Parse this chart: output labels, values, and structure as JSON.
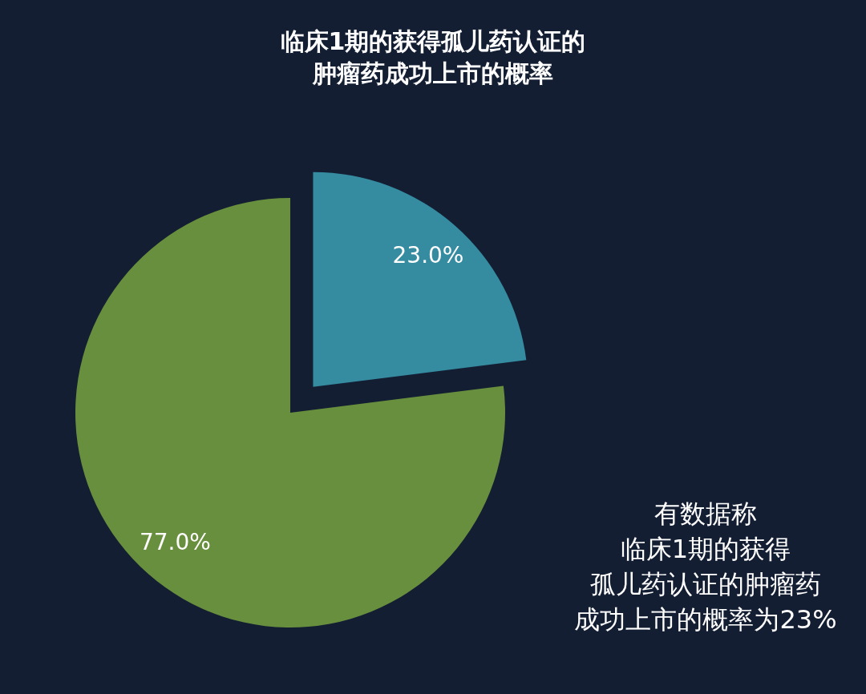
{
  "chart_data": {
    "type": "pie",
    "title": "临床1期的获得孤儿药认证的肿瘤药成功上市的概率",
    "categories": [
      null,
      null
    ],
    "values": [
      23,
      77
    ],
    "colors": [
      "#358ca0",
      "#688f3d"
    ],
    "value_labels": [
      "23.0%",
      "77.0%"
    ],
    "annotations": [
      "有数据称临床1期的获得孤儿药认证的肿瘤药成功上市的概率为23%"
    ]
  }
}
